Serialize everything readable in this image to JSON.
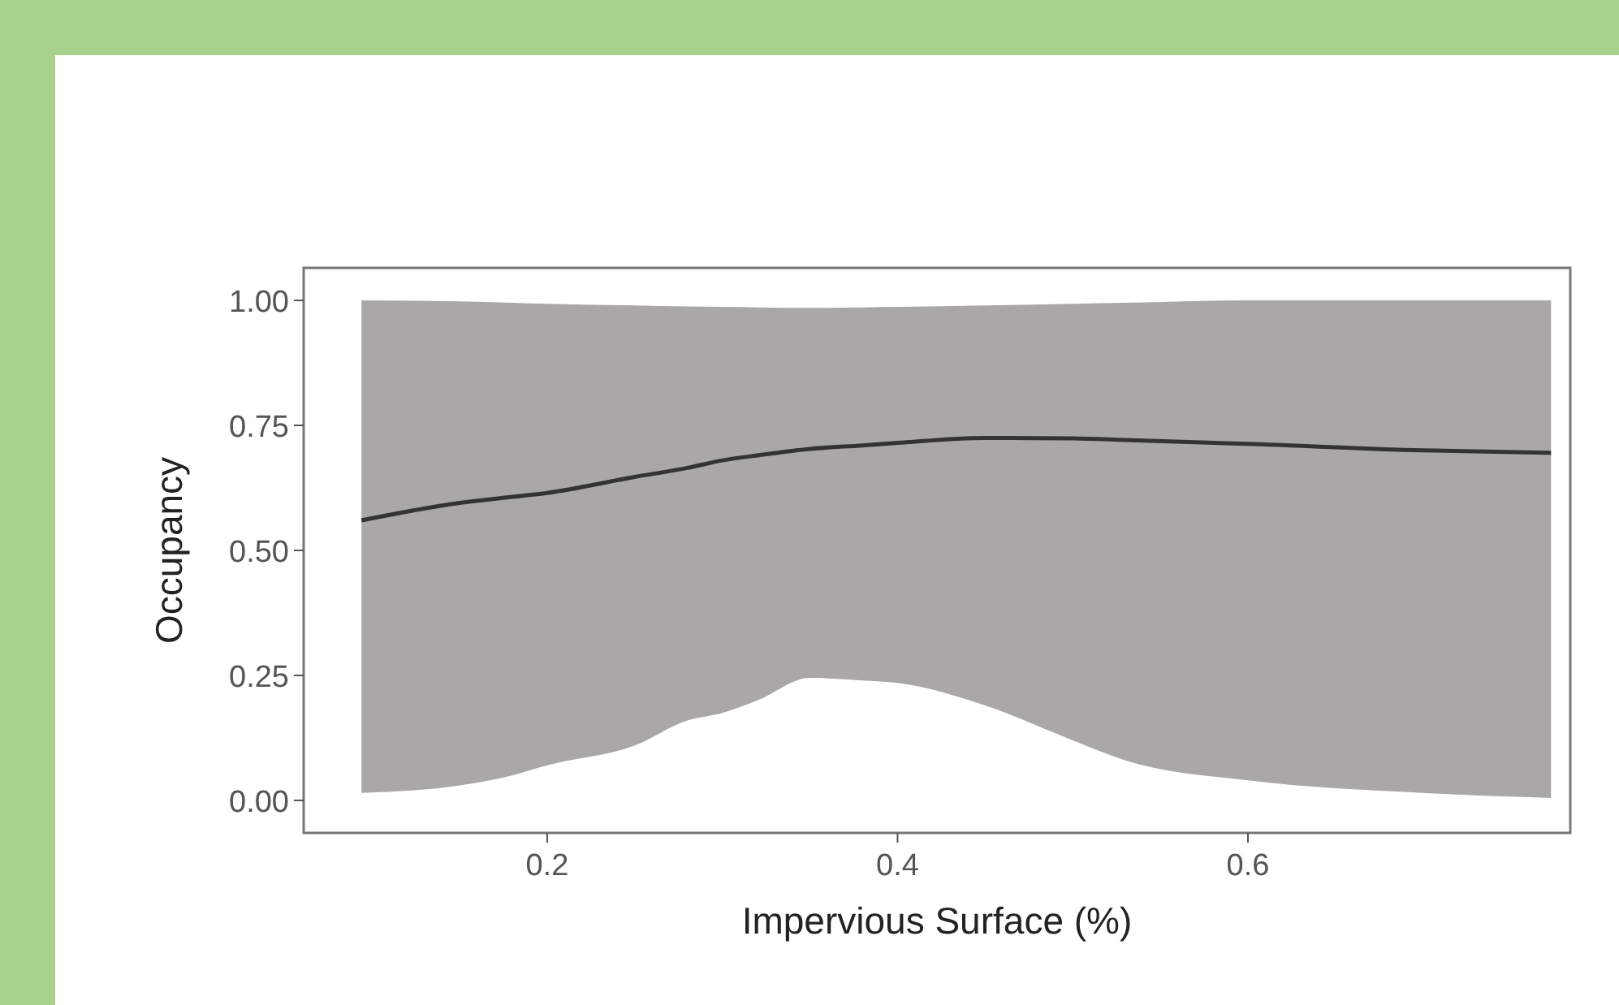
{
  "chart_data": {
    "type": "line",
    "xlabel": "Impervious Surface (%)",
    "ylabel": "Occupancy",
    "xlim": [
      0.061,
      0.784
    ],
    "ylim": [
      -0.065,
      1.065
    ],
    "xticks": [
      0.2,
      0.4,
      0.6
    ],
    "yticks": [
      {
        "value": 0,
        "label": "0.00"
      },
      {
        "value": 0.25,
        "label": "0.25"
      },
      {
        "value": 0.5,
        "label": "0.50"
      },
      {
        "value": 0.75,
        "label": "0.75"
      },
      {
        "value": 1,
        "label": "1.00"
      }
    ],
    "x": [
      0.094,
      0.15,
      0.18,
      0.2,
      0.25,
      0.28,
      0.3,
      0.32,
      0.35,
      0.38,
      0.4,
      0.45,
      0.5,
      0.53,
      0.6,
      0.7,
      0.773
    ],
    "series": [
      {
        "color": "#333333",
        "values": [
          0.56,
          0.595,
          0.607,
          0.615,
          0.647,
          0.665,
          0.68,
          0.69,
          0.703,
          0.71,
          0.715,
          0.725,
          0.724,
          0.721,
          0.713,
          0.7,
          0.695
        ],
        "lower": [
          0.015,
          0.03,
          0.05,
          0.07,
          0.11,
          0.16,
          0.175,
          0.2,
          0.245,
          0.24,
          0.235,
          0.19,
          0.12,
          0.08,
          0.04,
          0.015,
          0.005
        ],
        "upper": [
          1.0,
          0.998,
          0.995,
          0.993,
          0.99,
          0.988,
          0.987,
          0.986,
          0.985,
          0.986,
          0.987,
          0.99,
          0.993,
          0.995,
          1.0,
          1.0,
          1.0
        ]
      }
    ],
    "grid": false
  }
}
